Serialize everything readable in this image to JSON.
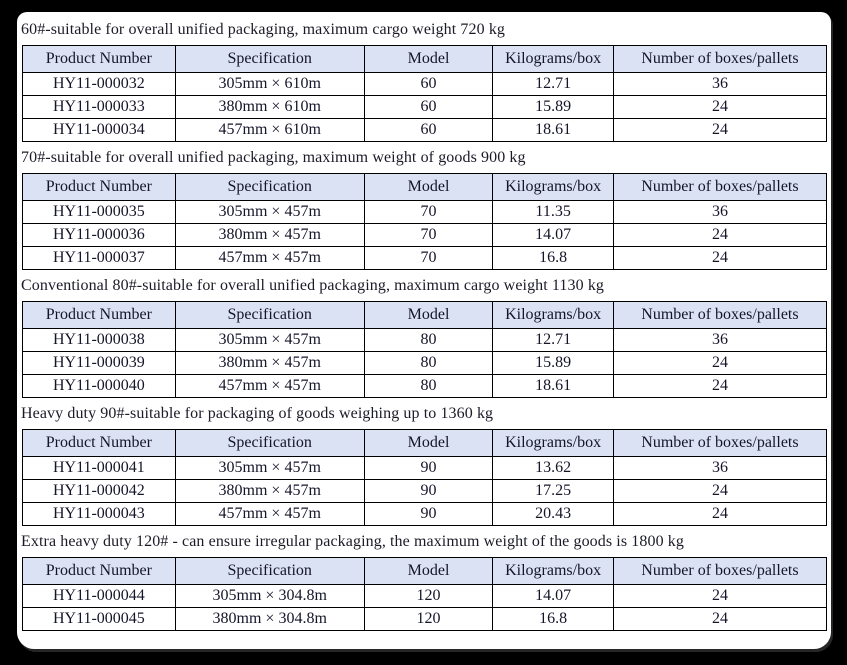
{
  "theme": {
    "page_bg": "#000000",
    "card_bg": "#ffffff",
    "header_fill": "#dbe2f3",
    "border_color": "#000000",
    "text_color": "#15152a"
  },
  "columns": [
    "Product Number",
    "Specification",
    "Model",
    "Kilograms/box",
    "Number of boxes/pallets"
  ],
  "sections": [
    {
      "heading": "60#-suitable for overall unified packaging, maximum cargo weight 720 kg",
      "rows": [
        [
          "HY11-000032",
          "305mm × 610m",
          "60",
          "12.71",
          "36"
        ],
        [
          "HY11-000033",
          "380mm × 610m",
          "60",
          "15.89",
          "24"
        ],
        [
          "HY11-000034",
          "457mm × 610m",
          "60",
          "18.61",
          "24"
        ]
      ]
    },
    {
      "heading": "70#-suitable for overall unified packaging, maximum weight of goods 900 kg",
      "rows": [
        [
          "HY11-000035",
          "305mm × 457m",
          "70",
          "11.35",
          "36"
        ],
        [
          "HY11-000036",
          "380mm × 457m",
          "70",
          "14.07",
          "24"
        ],
        [
          "HY11-000037",
          "457mm × 457m",
          "70",
          "16.8",
          "24"
        ]
      ]
    },
    {
      "heading": "Conventional 80#-suitable for overall unified packaging, maximum cargo weight 1130 kg",
      "rows": [
        [
          "HY11-000038",
          "305mm × 457m",
          "80",
          "12.71",
          "36"
        ],
        [
          "HY11-000039",
          "380mm × 457m",
          "80",
          "15.89",
          "24"
        ],
        [
          "HY11-000040",
          "457mm × 457m",
          "80",
          "18.61",
          "24"
        ]
      ]
    },
    {
      "heading": "Heavy duty 90#-suitable for packaging of goods weighing up to 1360 kg",
      "rows": [
        [
          "HY11-000041",
          "305mm × 457m",
          "90",
          "13.62",
          "36"
        ],
        [
          "HY11-000042",
          "380mm × 457m",
          "90",
          "17.25",
          "24"
        ],
        [
          "HY11-000043",
          "457mm × 457m",
          "90",
          "20.43",
          "24"
        ]
      ]
    },
    {
      "heading": "Extra heavy duty 120# - can ensure irregular packaging, the maximum weight of the goods is 1800 kg",
      "rows": [
        [
          "HY11-000044",
          "305mm × 304.8m",
          "120",
          "14.07",
          "24"
        ],
        [
          "HY11-000045",
          "380mm × 304.8m",
          "120",
          "16.8",
          "24"
        ]
      ]
    }
  ]
}
